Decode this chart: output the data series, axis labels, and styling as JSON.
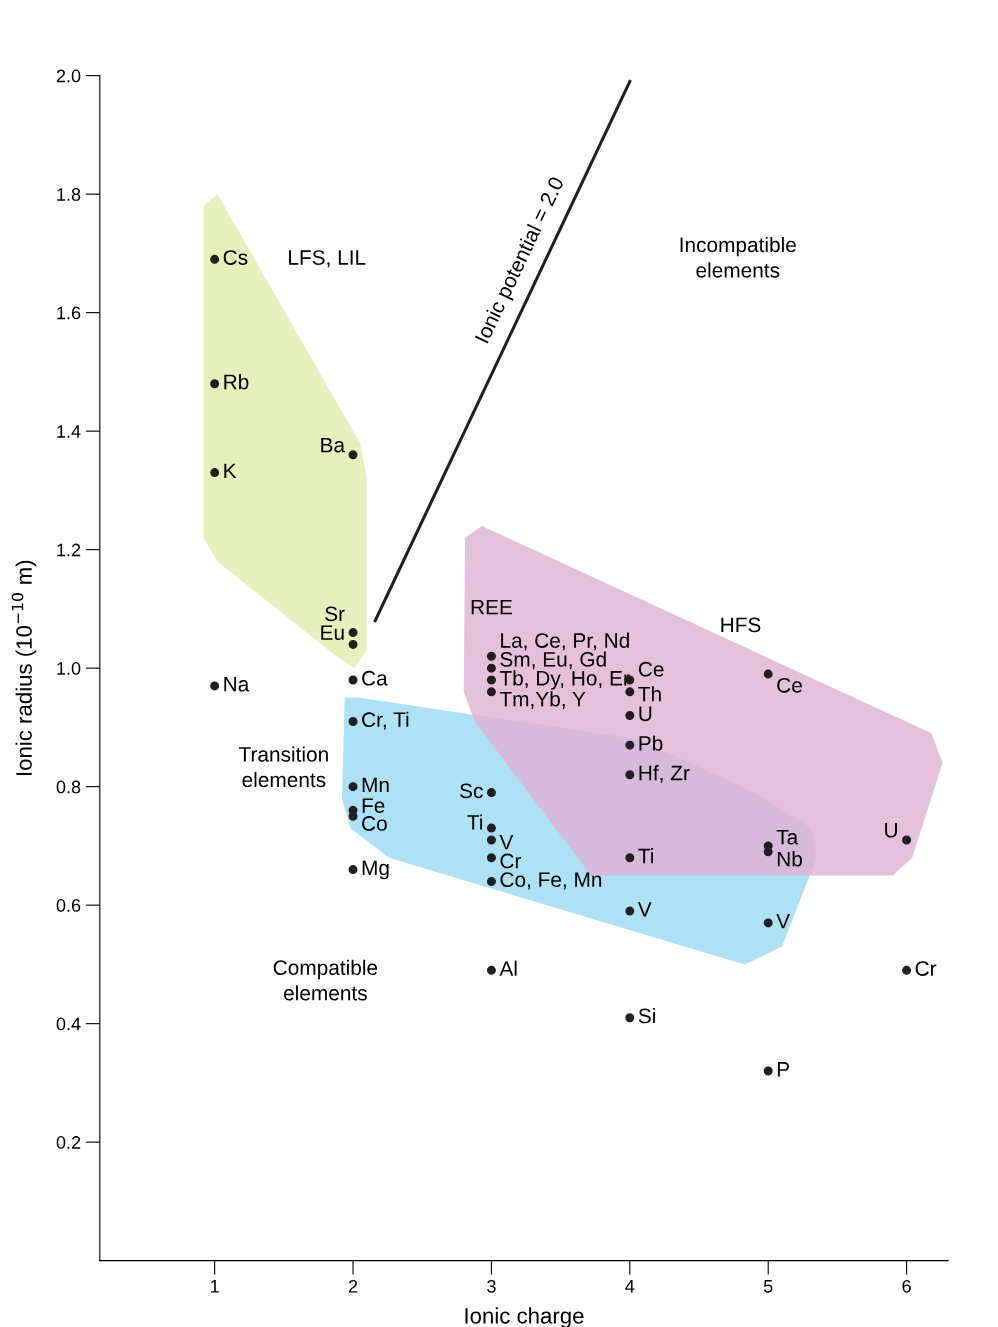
{
  "chart_data": {
    "type": "scatter",
    "xlabel": "Ionic charge",
    "ylabel": "Ionic radius (10$^{−10}$ m)",
    "xlim": [
      0.17,
      6.3
    ],
    "ylim": [
      0,
      2.0
    ],
    "xticks": [
      1,
      2,
      3,
      4,
      5,
      6
    ],
    "yticks": [
      0.2,
      0.4,
      0.6,
      0.8,
      {
        "value": 1,
        "label": "1.0"
      },
      1.2,
      1.4,
      1.6,
      1.8,
      {
        "value": 2,
        "label": "2.0"
      }
    ],
    "grid": false,
    "legend": false,
    "series": [
      {
        "type": "area",
        "color": "#e5efb9",
        "x": [
          0.92,
          1.02,
          2.05,
          2.1,
          2.1,
          2.01,
          1.88,
          1.02,
          0.92
        ],
        "values": [
          1.78,
          1.8,
          1.38,
          1.32,
          1.03,
          1.0,
          1.02,
          1.18,
          1.22
        ]
      },
      {
        "type": "area",
        "color": "#a9dff4",
        "x": [
          1.94,
          2.05,
          4.06,
          4.9,
          5.31,
          5.35,
          5.1,
          4.83,
          2.26,
          1.98,
          1.92
        ],
        "values": [
          0.95,
          0.95,
          0.88,
          0.79,
          0.73,
          0.68,
          0.53,
          0.5,
          0.68,
          0.73,
          0.78
        ]
      },
      {
        "type": "area",
        "color": "#dfb0d2",
        "x": [
          2.81,
          2.93,
          6.18,
          6.26,
          6.04,
          5.9,
          3.72,
          2.88,
          2.8
        ],
        "values": [
          1.22,
          1.24,
          0.89,
          0.84,
          0.68,
          0.65,
          0.65,
          0.91,
          0.96
        ]
      },
      {
        "type": "line",
        "color": "#231f20",
        "x": [
          2.16,
          4.0
        ],
        "values": [
          1.08,
          1.99
        ]
      },
      {
        "color": "#231f20",
        "marker": "circle",
        "x": [
          1,
          1,
          1,
          1,
          2,
          2,
          2,
          2,
          2,
          2,
          2,
          2,
          2,
          3,
          3,
          3,
          3,
          3,
          3,
          3,
          3,
          3,
          3,
          4,
          4,
          4,
          4,
          4,
          4,
          4,
          4,
          5,
          5,
          5,
          5,
          5,
          6,
          6
        ],
        "values": [
          1.69,
          1.48,
          1.33,
          0.97,
          1.36,
          1.06,
          1.04,
          0.98,
          0.91,
          0.8,
          0.76,
          0.75,
          0.66,
          0.79,
          0.73,
          0.71,
          0.68,
          0.64,
          0.49,
          1.02,
          1.0,
          0.98,
          0.96,
          0.98,
          0.96,
          0.92,
          0.87,
          0.82,
          0.68,
          0.59,
          0.41,
          0.99,
          0.7,
          0.69,
          0.57,
          0.32,
          0.71,
          0.49
        ]
      }
    ],
    "annotations": [
      {
        "text": "Cs",
        "x": 1,
        "y": 1.69
      },
      {
        "text": "Rb",
        "x": 1,
        "y": 1.48
      },
      {
        "text": "K",
        "x": 1,
        "y": 1.33
      },
      {
        "text": "Na",
        "x": 1,
        "y": 0.97
      },
      {
        "text": "Ba",
        "x": 2,
        "y": 1.36
      },
      {
        "text": "Sr",
        "x": 2,
        "y": 1.06
      },
      {
        "text": "Eu",
        "x": 2,
        "y": 1.04
      },
      {
        "text": "Ca",
        "x": 2,
        "y": 0.98
      },
      {
        "text": "Cr, Ti",
        "x": 2,
        "y": 0.91
      },
      {
        "text": "Mn",
        "x": 2,
        "y": 0.8
      },
      {
        "text": "Fe",
        "x": 2,
        "y": 0.76
      },
      {
        "text": "Co",
        "x": 2,
        "y": 0.75
      },
      {
        "text": "Mg",
        "x": 2,
        "y": 0.66
      },
      {
        "text": "Sc",
        "x": 3,
        "y": 0.79
      },
      {
        "text": "Ti",
        "x": 3,
        "y": 0.73
      },
      {
        "text": "V",
        "x": 3,
        "y": 0.71
      },
      {
        "text": "Cr",
        "x": 3,
        "y": 0.68
      },
      {
        "text": "Co, Fe, Mn",
        "x": 3,
        "y": 0.64
      },
      {
        "text": "Al",
        "x": 3,
        "y": 0.49
      },
      {
        "text": "La, Ce, Pr, Nd",
        "x": 3,
        "y": 1.02
      },
      {
        "text": "Sm, Eu, Gd",
        "x": 3,
        "y": 1.0
      },
      {
        "text": "Tb, Dy, Ho, Er",
        "x": 3,
        "y": 0.98
      },
      {
        "text": "Tm,Yb, Y",
        "x": 3,
        "y": 0.96
      },
      {
        "text": "Ce",
        "x": 4,
        "y": 0.98
      },
      {
        "text": "Th",
        "x": 4,
        "y": 0.96
      },
      {
        "text": "U",
        "x": 4,
        "y": 0.92
      },
      {
        "text": "Pb",
        "x": 4,
        "y": 0.87
      },
      {
        "text": "Hf, Zr",
        "x": 4,
        "y": 0.82
      },
      {
        "text": "Ti",
        "x": 4,
        "y": 0.68
      },
      {
        "text": "V",
        "x": 4,
        "y": 0.59
      },
      {
        "text": "Si",
        "x": 4,
        "y": 0.41
      },
      {
        "text": "Ce",
        "x": 5,
        "y": 0.99
      },
      {
        "text": "Ta",
        "x": 5,
        "y": 0.7
      },
      {
        "text": "Nb",
        "x": 5,
        "y": 0.69
      },
      {
        "text": "V",
        "x": 5,
        "y": 0.57
      },
      {
        "text": "P",
        "x": 5,
        "y": 0.32
      },
      {
        "text": "U",
        "x": 6,
        "y": 0.71
      },
      {
        "text": "Cr",
        "x": 6,
        "y": 0.49
      },
      "LFS, LIL",
      "Incompatible\nelements",
      "REE",
      "HFS",
      "Transition\nelements",
      "Compatible\nelements",
      "Ionic potential = 2.0"
    ]
  }
}
